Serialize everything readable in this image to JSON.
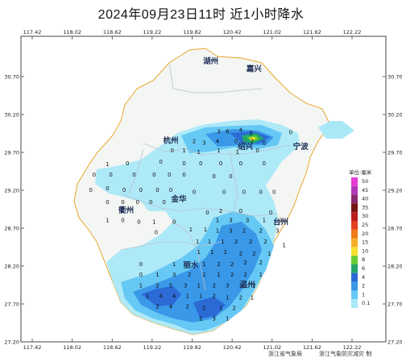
{
  "title": "2024年09月23日11时  近1小时降水",
  "lon_ticks": [
    "117.42",
    "118.02",
    "118.62",
    "119.22",
    "119.82",
    "120.42",
    "121.02",
    "121.62",
    "122.22"
  ],
  "lat_ticks": [
    "30.70",
    "30.20",
    "29.70",
    "29.20",
    "28.70",
    "28.20",
    "27.70",
    "27.20"
  ],
  "cities": [
    {
      "name": "湖州",
      "lon": 120.1,
      "lat": 30.87
    },
    {
      "name": "嘉兴",
      "lon": 120.75,
      "lat": 30.77
    },
    {
      "name": "杭州",
      "lon": 119.5,
      "lat": 29.82
    },
    {
      "name": "绍兴",
      "lon": 120.62,
      "lat": 29.74
    },
    {
      "name": "宁波",
      "lon": 121.45,
      "lat": 29.74
    },
    {
      "name": "金华",
      "lon": 119.62,
      "lat": 29.05
    },
    {
      "name": "衢州",
      "lon": 118.83,
      "lat": 28.9
    },
    {
      "name": "台州",
      "lon": 121.15,
      "lat": 28.75
    },
    {
      "name": "丽水",
      "lon": 119.8,
      "lat": 28.18
    },
    {
      "name": "温州",
      "lon": 120.65,
      "lat": 27.92
    }
  ],
  "legend": {
    "title": "单位:毫米",
    "items": [
      {
        "label": "50",
        "color": "#e83ad6"
      },
      {
        "label": "45",
        "color": "#b038b8"
      },
      {
        "label": "40",
        "color": "#8a2a6a"
      },
      {
        "label": "35",
        "color": "#7a1414"
      },
      {
        "label": "30",
        "color": "#b81c1c"
      },
      {
        "label": "25",
        "color": "#e34020"
      },
      {
        "label": "20",
        "color": "#f07818"
      },
      {
        "label": "15",
        "color": "#f6ac28"
      },
      {
        "label": "10",
        "color": "#f6e030"
      },
      {
        "label": "8",
        "color": "#66cc33"
      },
      {
        "label": "6",
        "color": "#23a66c"
      },
      {
        "label": "4",
        "color": "#2c6ad6"
      },
      {
        "label": "2",
        "color": "#3a98e8"
      },
      {
        "label": "1",
        "color": "#66c8f4"
      },
      {
        "label": "0.1",
        "color": "#aae8f8"
      }
    ]
  },
  "station_values": [
    {
      "lon": 120.22,
      "lat": 29.95,
      "v": "3"
    },
    {
      "lon": 120.35,
      "lat": 29.95,
      "v": "6"
    },
    {
      "lon": 120.55,
      "lat": 29.97,
      "v": "4"
    },
    {
      "lon": 120.7,
      "lat": 29.93,
      "v": "3"
    },
    {
      "lon": 119.85,
      "lat": 29.82,
      "v": "2"
    },
    {
      "lon": 120.0,
      "lat": 29.8,
      "v": "3"
    },
    {
      "lon": 120.2,
      "lat": 29.82,
      "v": "4"
    },
    {
      "lon": 120.48,
      "lat": 29.82,
      "v": "0"
    },
    {
      "lon": 120.72,
      "lat": 29.82,
      "v": "2"
    },
    {
      "lon": 120.9,
      "lat": 29.8,
      "v": "0"
    },
    {
      "lon": 121.3,
      "lat": 29.94,
      "v": "0"
    },
    {
      "lon": 119.52,
      "lat": 29.7,
      "v": "0"
    },
    {
      "lon": 119.7,
      "lat": 29.7,
      "v": "1"
    },
    {
      "lon": 119.92,
      "lat": 29.68,
      "v": "1"
    },
    {
      "lon": 120.22,
      "lat": 29.7,
      "v": "1"
    },
    {
      "lon": 120.5,
      "lat": 29.68,
      "v": "1"
    },
    {
      "lon": 120.8,
      "lat": 29.7,
      "v": "0"
    },
    {
      "lon": 118.55,
      "lat": 29.52,
      "v": "1"
    },
    {
      "lon": 118.85,
      "lat": 29.53,
      "v": "0"
    },
    {
      "lon": 119.35,
      "lat": 29.55,
      "v": "0"
    },
    {
      "lon": 119.7,
      "lat": 29.53,
      "v": "0"
    },
    {
      "lon": 119.95,
      "lat": 29.53,
      "v": "0"
    },
    {
      "lon": 120.25,
      "lat": 29.53,
      "v": "0"
    },
    {
      "lon": 120.55,
      "lat": 29.53,
      "v": "0"
    },
    {
      "lon": 120.9,
      "lat": 29.53,
      "v": "0"
    },
    {
      "lon": 118.35,
      "lat": 29.38,
      "v": "0"
    },
    {
      "lon": 118.6,
      "lat": 29.38,
      "v": "0"
    },
    {
      "lon": 118.95,
      "lat": 29.38,
      "v": "0"
    },
    {
      "lon": 119.25,
      "lat": 29.38,
      "v": "0"
    },
    {
      "lon": 119.48,
      "lat": 29.38,
      "v": "0"
    },
    {
      "lon": 119.7,
      "lat": 29.38,
      "v": "0"
    },
    {
      "lon": 120.15,
      "lat": 29.36,
      "v": "0"
    },
    {
      "lon": 120.4,
      "lat": 29.36,
      "v": "0"
    },
    {
      "lon": 118.3,
      "lat": 29.18,
      "v": "0"
    },
    {
      "lon": 118.55,
      "lat": 29.2,
      "v": "0"
    },
    {
      "lon": 118.8,
      "lat": 29.18,
      "v": "0"
    },
    {
      "lon": 119.05,
      "lat": 29.18,
      "v": "0"
    },
    {
      "lon": 119.3,
      "lat": 29.18,
      "v": "0"
    },
    {
      "lon": 119.5,
      "lat": 29.18,
      "v": "0"
    },
    {
      "lon": 119.85,
      "lat": 29.15,
      "v": "0"
    },
    {
      "lon": 120.3,
      "lat": 29.15,
      "v": "0"
    },
    {
      "lon": 120.6,
      "lat": 29.15,
      "v": "0"
    },
    {
      "lon": 120.85,
      "lat": 29.15,
      "v": "0"
    },
    {
      "lon": 121.05,
      "lat": 29.15,
      "v": "0"
    },
    {
      "lon": 118.55,
      "lat": 29.02,
      "v": "0"
    },
    {
      "lon": 118.78,
      "lat": 29.02,
      "v": "0"
    },
    {
      "lon": 119.0,
      "lat": 29.02,
      "v": "0"
    },
    {
      "lon": 119.2,
      "lat": 29.02,
      "v": "0"
    },
    {
      "lon": 119.4,
      "lat": 29.02,
      "v": "0"
    },
    {
      "lon": 120.05,
      "lat": 28.88,
      "v": "0"
    },
    {
      "lon": 120.25,
      "lat": 28.9,
      "v": "2"
    },
    {
      "lon": 120.55,
      "lat": 28.9,
      "v": "0"
    },
    {
      "lon": 121.0,
      "lat": 28.88,
      "v": "0"
    },
    {
      "lon": 118.55,
      "lat": 28.78,
      "v": "1"
    },
    {
      "lon": 118.78,
      "lat": 28.78,
      "v": "0"
    },
    {
      "lon": 119.02,
      "lat": 28.76,
      "v": "0"
    },
    {
      "lon": 119.25,
      "lat": 28.76,
      "v": "1"
    },
    {
      "lon": 119.55,
      "lat": 28.76,
      "v": "0"
    },
    {
      "lon": 120.2,
      "lat": 28.78,
      "v": "1"
    },
    {
      "lon": 120.4,
      "lat": 28.78,
      "v": "3"
    },
    {
      "lon": 120.65,
      "lat": 28.78,
      "v": "3"
    },
    {
      "lon": 120.9,
      "lat": 28.78,
      "v": "1"
    },
    {
      "lon": 121.15,
      "lat": 28.78,
      "v": "2"
    },
    {
      "lon": 119.28,
      "lat": 28.62,
      "v": "0"
    },
    {
      "lon": 119.8,
      "lat": 28.66,
      "v": "1"
    },
    {
      "lon": 120.02,
      "lat": 28.66,
      "v": "1"
    },
    {
      "lon": 120.2,
      "lat": 28.64,
      "v": "1"
    },
    {
      "lon": 120.4,
      "lat": 28.64,
      "v": "3"
    },
    {
      "lon": 120.6,
      "lat": 28.64,
      "v": "2"
    },
    {
      "lon": 120.85,
      "lat": 28.64,
      "v": "2"
    },
    {
      "lon": 121.1,
      "lat": 28.64,
      "v": "3"
    },
    {
      "lon": 119.9,
      "lat": 28.5,
      "v": "1"
    },
    {
      "lon": 120.08,
      "lat": 28.5,
      "v": "1"
    },
    {
      "lon": 120.28,
      "lat": 28.5,
      "v": "1"
    },
    {
      "lon": 120.48,
      "lat": 28.5,
      "v": "2"
    },
    {
      "lon": 120.7,
      "lat": 28.5,
      "v": "2"
    },
    {
      "lon": 120.92,
      "lat": 28.5,
      "v": "2"
    },
    {
      "lon": 121.2,
      "lat": 28.45,
      "v": "1"
    },
    {
      "lon": 119.92,
      "lat": 28.36,
      "v": "1"
    },
    {
      "lon": 120.12,
      "lat": 28.36,
      "v": "1"
    },
    {
      "lon": 120.32,
      "lat": 28.36,
      "v": "1"
    },
    {
      "lon": 120.55,
      "lat": 28.34,
      "v": "2"
    },
    {
      "lon": 120.75,
      "lat": 28.34,
      "v": "2"
    },
    {
      "lon": 120.98,
      "lat": 28.34,
      "v": "1"
    },
    {
      "lon": 119.05,
      "lat": 28.2,
      "v": "0"
    },
    {
      "lon": 119.55,
      "lat": 28.2,
      "v": "1"
    },
    {
      "lon": 120.0,
      "lat": 28.2,
      "v": "1"
    },
    {
      "lon": 120.22,
      "lat": 28.2,
      "v": "2"
    },
    {
      "lon": 120.42,
      "lat": 28.2,
      "v": "2"
    },
    {
      "lon": 120.62,
      "lat": 28.22,
      "v": "2"
    },
    {
      "lon": 120.85,
      "lat": 28.22,
      "v": "2"
    },
    {
      "lon": 119.05,
      "lat": 28.06,
      "v": "0"
    },
    {
      "lon": 119.3,
      "lat": 28.06,
      "v": "1"
    },
    {
      "lon": 119.55,
      "lat": 28.06,
      "v": "3"
    },
    {
      "lon": 119.78,
      "lat": 28.06,
      "v": "2"
    },
    {
      "lon": 120.0,
      "lat": 28.06,
      "v": "2"
    },
    {
      "lon": 120.22,
      "lat": 28.06,
      "v": "1"
    },
    {
      "lon": 120.42,
      "lat": 28.06,
      "v": "2"
    },
    {
      "lon": 120.62,
      "lat": 28.06,
      "v": "2"
    },
    {
      "lon": 120.85,
      "lat": 28.06,
      "v": "1"
    },
    {
      "lon": 119.05,
      "lat": 27.92,
      "v": "1"
    },
    {
      "lon": 119.3,
      "lat": 27.92,
      "v": "2"
    },
    {
      "lon": 119.5,
      "lat": 27.92,
      "v": "5"
    },
    {
      "lon": 119.72,
      "lat": 27.92,
      "v": "3"
    },
    {
      "lon": 119.92,
      "lat": 27.92,
      "v": "1"
    },
    {
      "lon": 120.15,
      "lat": 27.92,
      "v": "2"
    },
    {
      "lon": 120.35,
      "lat": 27.92,
      "v": "3"
    },
    {
      "lon": 120.55,
      "lat": 27.92,
      "v": "3"
    },
    {
      "lon": 120.75,
      "lat": 27.92,
      "v": "2"
    },
    {
      "lon": 119.15,
      "lat": 27.78,
      "v": "1"
    },
    {
      "lon": 119.35,
      "lat": 27.78,
      "v": "4"
    },
    {
      "lon": 119.55,
      "lat": 27.78,
      "v": "4"
    },
    {
      "lon": 119.75,
      "lat": 27.78,
      "v": "1"
    },
    {
      "lon": 119.95,
      "lat": 27.78,
      "v": "1"
    },
    {
      "lon": 120.15,
      "lat": 27.78,
      "v": "2"
    },
    {
      "lon": 120.35,
      "lat": 27.76,
      "v": "1"
    },
    {
      "lon": 120.55,
      "lat": 27.76,
      "v": "2"
    },
    {
      "lon": 120.72,
      "lat": 27.76,
      "v": "1"
    },
    {
      "lon": 119.3,
      "lat": 27.64,
      "v": "2"
    },
    {
      "lon": 119.5,
      "lat": 27.64,
      "v": "4"
    },
    {
      "lon": 119.75,
      "lat": 27.64,
      "v": "2"
    },
    {
      "lon": 120.0,
      "lat": 27.62,
      "v": "2"
    },
    {
      "lon": 120.25,
      "lat": 27.62,
      "v": "1"
    },
    {
      "lon": 120.45,
      "lat": 27.62,
      "v": "2"
    },
    {
      "lon": 119.95,
      "lat": 27.48,
      "v": "2"
    },
    {
      "lon": 120.15,
      "lat": 27.48,
      "v": "3"
    },
    {
      "lon": 120.35,
      "lat": 27.48,
      "v": "1"
    }
  ],
  "credits": {
    "left": "浙江省气象局",
    "right": "浙江气象防灾减灾 制"
  }
}
